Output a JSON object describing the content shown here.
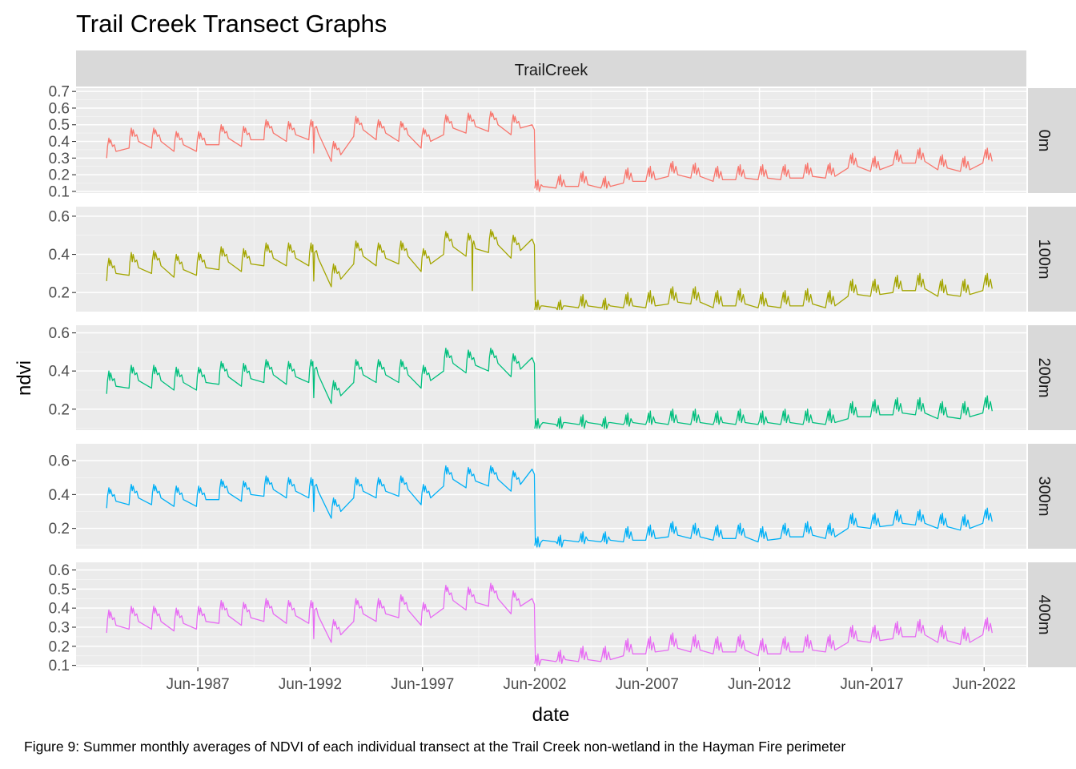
{
  "caption": "Figure 9: Summer monthly averages of NDVI of each individual transect at the Trail Creek non-wetland in the Hayman Fire perimeter",
  "chart_data": {
    "type": "line",
    "title": "Trail Creek Transect Graphs",
    "facet_column": "TrailCreek",
    "xlabel": "date",
    "ylabel": "ndvi",
    "xlim": [
      1982.0,
      2024.3
    ],
    "x_ticks": [
      {
        "value": 1987.42,
        "label": "Jun-1987"
      },
      {
        "value": 1992.42,
        "label": "Jun-1992"
      },
      {
        "value": 1997.42,
        "label": "Jun-1997"
      },
      {
        "value": 2002.42,
        "label": "Jun-2002"
      },
      {
        "value": 2007.42,
        "label": "Jun-2007"
      },
      {
        "value": 2012.42,
        "label": "Jun-2012"
      },
      {
        "value": 2017.42,
        "label": "Jun-2017"
      },
      {
        "value": 2022.42,
        "label": "Jun-2022"
      }
    ],
    "grid": true,
    "series": [
      {
        "name": "0m",
        "color": "#F8766D",
        "ylim": [
          0.09,
          0.72
        ],
        "y_ticks": [
          0.1,
          0.2,
          0.3,
          0.4,
          0.5,
          0.6,
          0.7
        ],
        "pre": [
          0.42,
          0.48,
          0.48,
          0.46,
          0.46,
          0.5,
          0.49,
          0.53,
          0.52,
          0.53,
          0.4,
          0.55,
          0.53,
          0.52,
          0.48,
          0.56,
          0.57,
          0.58,
          0.56
        ],
        "drop": 0.47,
        "post": [
          0.16,
          0.19,
          0.21,
          0.18,
          0.23,
          0.24,
          0.27,
          0.26,
          0.24,
          0.25,
          0.25,
          0.25,
          0.26,
          0.26,
          0.32,
          0.3,
          0.34,
          0.35,
          0.31,
          0.3,
          0.35
        ]
      },
      {
        "name": "100m",
        "color": "#A3A500",
        "ylim": [
          0.1,
          0.65
        ],
        "y_ticks": [
          0.2,
          0.4,
          0.6
        ],
        "pre": [
          0.38,
          0.41,
          0.42,
          0.4,
          0.41,
          0.44,
          0.43,
          0.46,
          0.46,
          0.46,
          0.35,
          0.47,
          0.46,
          0.47,
          0.43,
          0.52,
          0.51,
          0.53,
          0.5
        ],
        "drop": 0.45,
        "post": [
          0.15,
          0.15,
          0.18,
          0.16,
          0.19,
          0.2,
          0.22,
          0.22,
          0.2,
          0.21,
          0.19,
          0.2,
          0.21,
          0.2,
          0.26,
          0.26,
          0.28,
          0.29,
          0.26,
          0.26,
          0.29
        ]
      },
      {
        "name": "200m",
        "color": "#00BF7D",
        "ylim": [
          0.09,
          0.64
        ],
        "y_ticks": [
          0.2,
          0.4,
          0.6
        ],
        "pre": [
          0.4,
          0.43,
          0.43,
          0.42,
          0.42,
          0.45,
          0.44,
          0.46,
          0.45,
          0.46,
          0.35,
          0.46,
          0.46,
          0.46,
          0.43,
          0.52,
          0.51,
          0.52,
          0.49
        ],
        "drop": 0.44,
        "post": [
          0.14,
          0.15,
          0.16,
          0.15,
          0.17,
          0.18,
          0.19,
          0.19,
          0.18,
          0.19,
          0.18,
          0.19,
          0.19,
          0.19,
          0.23,
          0.24,
          0.25,
          0.25,
          0.23,
          0.23,
          0.26
        ]
      },
      {
        "name": "300m",
        "color": "#00B0F6",
        "ylim": [
          0.08,
          0.7
        ],
        "y_ticks": [
          0.2,
          0.4,
          0.6
        ],
        "pre": [
          0.44,
          0.46,
          0.46,
          0.45,
          0.45,
          0.49,
          0.48,
          0.51,
          0.5,
          0.5,
          0.38,
          0.5,
          0.5,
          0.51,
          0.46,
          0.57,
          0.56,
          0.57,
          0.54
        ],
        "drop": 0.52,
        "post": [
          0.14,
          0.15,
          0.17,
          0.17,
          0.2,
          0.21,
          0.23,
          0.22,
          0.21,
          0.22,
          0.2,
          0.22,
          0.23,
          0.22,
          0.28,
          0.28,
          0.3,
          0.3,
          0.28,
          0.27,
          0.31
        ]
      },
      {
        "name": "400m",
        "color": "#E76BF3",
        "ylim": [
          0.09,
          0.64
        ],
        "y_ticks": [
          0.1,
          0.2,
          0.3,
          0.4,
          0.5,
          0.6
        ],
        "pre": [
          0.39,
          0.41,
          0.41,
          0.4,
          0.41,
          0.44,
          0.43,
          0.45,
          0.44,
          0.44,
          0.34,
          0.45,
          0.45,
          0.47,
          0.43,
          0.52,
          0.51,
          0.53,
          0.49
        ],
        "drop": 0.42,
        "post": [
          0.15,
          0.17,
          0.19,
          0.19,
          0.23,
          0.24,
          0.26,
          0.25,
          0.24,
          0.25,
          0.23,
          0.24,
          0.25,
          0.25,
          0.3,
          0.3,
          0.32,
          0.33,
          0.3,
          0.29,
          0.34
        ]
      }
    ]
  }
}
